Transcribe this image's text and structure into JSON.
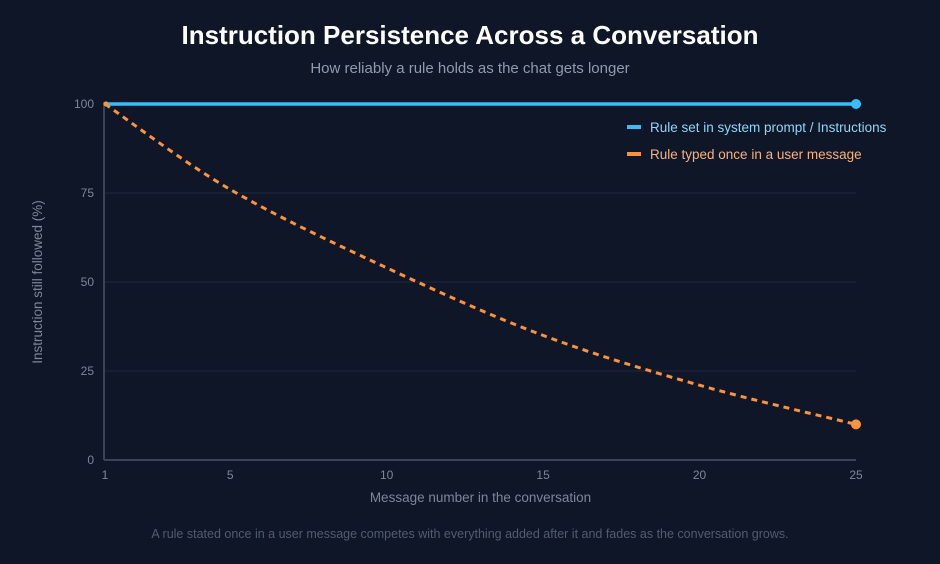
{
  "chart_data": {
    "type": "line",
    "title": "Instruction Persistence Across a Conversation",
    "subtitle": "How reliably a rule holds as the chat gets longer",
    "footnote": "A rule stated once in a user message competes with everything added after it and fades as the conversation grows.",
    "xlabel": "Message number in the conversation",
    "ylabel": "Instruction still followed (%)",
    "xlim": [
      1,
      25
    ],
    "ylim": [
      0,
      100
    ],
    "x_ticks": [
      1,
      5,
      10,
      15,
      20,
      25
    ],
    "y_ticks": [
      0,
      25,
      50,
      75,
      100
    ],
    "grid": true,
    "legend_position": "top-right",
    "x": [
      1,
      5,
      10,
      15,
      20,
      25
    ],
    "series": [
      {
        "name": "Rule set in system prompt / Instructions",
        "values": [
          100,
          100,
          100,
          100,
          100,
          100
        ],
        "color": "#38bdf8",
        "style": "solid"
      },
      {
        "name": "Rule typed once in a user message",
        "values": [
          100,
          76,
          54,
          35,
          21,
          10
        ],
        "color": "#fb923c",
        "style": "dashed"
      }
    ]
  }
}
